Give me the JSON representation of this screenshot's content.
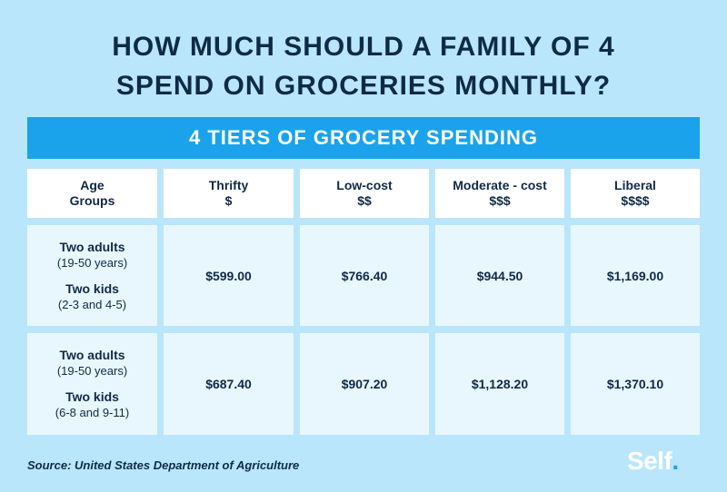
{
  "title": {
    "line1": "HOW MUCH SHOULD A FAMILY OF 4",
    "line2": "SPEND ON GROCERIES MONTHLY?"
  },
  "banner": "4 TIERS OF GROCERY SPENDING",
  "table": {
    "headers": [
      {
        "line1": "Age",
        "line2": "Groups"
      },
      {
        "line1": "Thrifty",
        "line2": "$"
      },
      {
        "line1": "Low-cost",
        "line2": "$$"
      },
      {
        "line1": "Moderate - cost",
        "line2": "$$$"
      },
      {
        "line1": "Liberal",
        "line2": "$$$$"
      }
    ],
    "rows": [
      {
        "group": {
          "adults": "Two adults",
          "adults_age": "(19-50 years)",
          "kids": "Two kids",
          "kids_age": "(2-3 and 4-5)"
        },
        "values": [
          "$599.00",
          "$766.40",
          "$944.50",
          "$1,169.00"
        ]
      },
      {
        "group": {
          "adults": "Two adults",
          "adults_age": "(19-50 years)",
          "kids": "Two kids",
          "kids_age": "(6-8 and 9-11)"
        },
        "values": [
          "$687.40",
          "$907.20",
          "$1,128.20",
          "$1,370.10"
        ]
      }
    ]
  },
  "source": "Source: United States Department of Agriculture",
  "brand": {
    "name": "Self",
    "dot": "."
  },
  "colors": {
    "background": "#b9e6fb",
    "banner": "#1aa3ea",
    "text": "#0f2a47"
  }
}
